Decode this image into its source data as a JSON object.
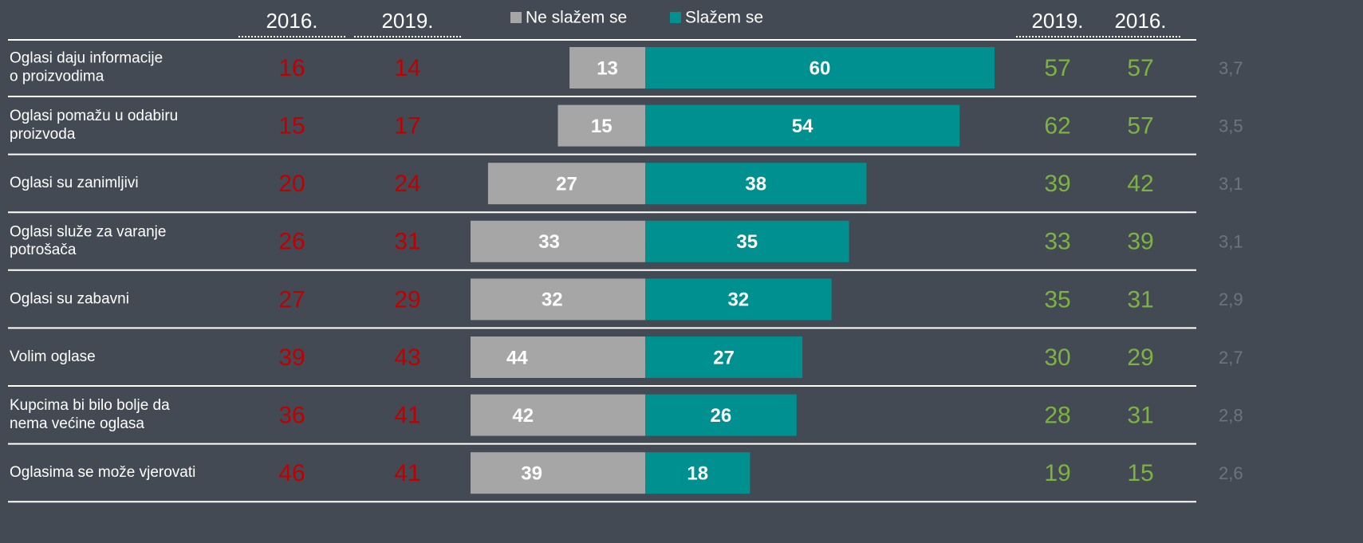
{
  "chart_data": {
    "type": "diverging-bar",
    "categories": [
      "Oglasi daju informacije\no proizvodima",
      "Oglasi pomažu u odabiru\nproizvoda",
      "Oglasi su zanimljivi",
      "Oglasi služe za varanje\npotrošača",
      "Oglasi su zabavni",
      "Volim oglase",
      "Kupcima bi bilo bolje da\nnema većine oglasa",
      "Oglasima se može vjerovati"
    ],
    "series": [
      {
        "name": "Ne slažem se",
        "color": "#a6a6a6",
        "direction": "left",
        "values": [
          13,
          15,
          27,
          33,
          32,
          44,
          42,
          39
        ]
      },
      {
        "name": "Slažem se",
        "color": "#00908f",
        "direction": "right",
        "values": [
          60,
          54,
          38,
          35,
          32,
          27,
          26,
          18
        ]
      }
    ],
    "xlim": [
      -30,
      60
    ],
    "columns": [
      {
        "header": "2016.",
        "color": "#c00000",
        "values": [
          16,
          15,
          20,
          26,
          27,
          39,
          36,
          46
        ]
      },
      {
        "header": "2019.",
        "color": "#c00000",
        "values": [
          14,
          17,
          24,
          31,
          29,
          43,
          41,
          41
        ]
      },
      {
        "header": "2019.",
        "color": "#7cb342",
        "values": [
          57,
          62,
          39,
          33,
          35,
          30,
          28,
          19
        ]
      },
      {
        "header": "2016.",
        "color": "#7cb342",
        "values": [
          57,
          57,
          42,
          39,
          31,
          29,
          31,
          15
        ]
      }
    ],
    "means": {
      "color": "#6b7480",
      "values": [
        3.7,
        3.5,
        3.1,
        3.1,
        2.9,
        2.7,
        2.8,
        2.6
      ],
      "value_labels": [
        "3,7",
        "3,5",
        "3,1",
        "3,1",
        "2,9",
        "2,7",
        "2,8",
        "2,6"
      ]
    }
  }
}
